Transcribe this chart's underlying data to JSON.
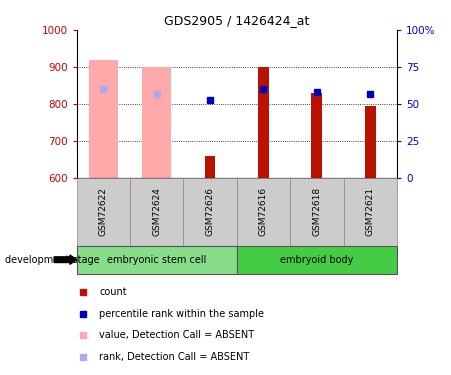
{
  "title": "GDS2905 / 1426424_at",
  "samples": [
    "GSM72622",
    "GSM72624",
    "GSM72626",
    "GSM72616",
    "GSM72618",
    "GSM72621"
  ],
  "group_colors": {
    "embryonic stem cell": "#88DD88",
    "embryoid body": "#44CC44"
  },
  "group_spans": [
    {
      "label": "embryonic stem cell",
      "start": 0,
      "end": 2
    },
    {
      "label": "embryoid body",
      "start": 3,
      "end": 5
    }
  ],
  "ylim": [
    600,
    1000
  ],
  "y_ticks": [
    600,
    700,
    800,
    900,
    1000
  ],
  "y_ticks_right": [
    0,
    25,
    50,
    75,
    100
  ],
  "absent_value_bars": [
    920,
    900,
    null,
    null,
    null,
    null
  ],
  "absent_value_color": "#FFAAAA",
  "bar_values": [
    null,
    null,
    660,
    900,
    830,
    795
  ],
  "bar_color_red": "#BB1100",
  "rank_dot_y": [
    840,
    828,
    810,
    840,
    832,
    828
  ],
  "rank_absent": [
    true,
    true,
    false,
    false,
    false,
    false
  ],
  "rank_dot_color_present": "#0000BB",
  "rank_dot_color_absent": "#AAAAEE",
  "absent_rank_y": [
    840,
    828,
    null,
    null,
    null,
    null
  ],
  "legend_items": [
    {
      "label": "count",
      "color": "#BB1100"
    },
    {
      "label": "percentile rank within the sample",
      "color": "#0000BB"
    },
    {
      "label": "value, Detection Call = ABSENT",
      "color": "#FFAAAA"
    },
    {
      "label": "rank, Detection Call = ABSENT",
      "color": "#AAAAEE"
    }
  ],
  "development_stage_label": "development stage",
  "tick_color_left": "#CC0000",
  "tick_color_right": "#0000CC",
  "sample_box_color": "#CCCCCC",
  "bg_color": "#FFFFFF"
}
